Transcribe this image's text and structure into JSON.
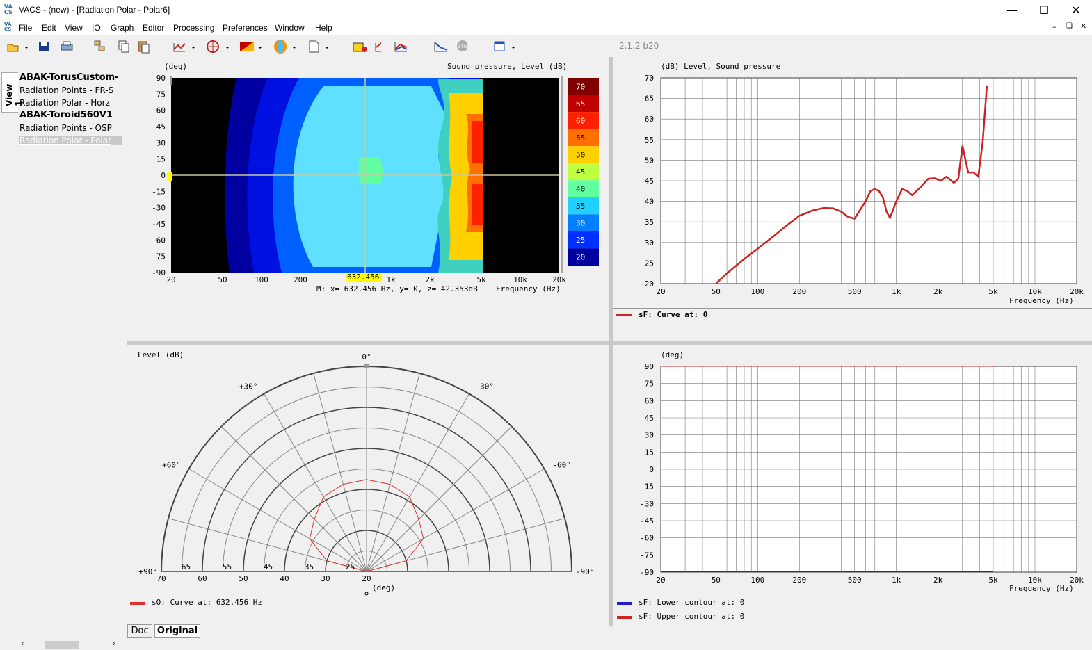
{
  "window": {
    "title": "VACS - (new) - [Radiation Polar - Polar6]",
    "logo": "VA CS",
    "controls": [
      "minimize-icon",
      "maximize-icon",
      "close-icon"
    ]
  },
  "menu": [
    "File",
    "Edit",
    "View",
    "IO",
    "Graph",
    "Editor",
    "Processing",
    "Preferences",
    "Window",
    "Help"
  ],
  "version": "2.1.2 b20",
  "sidebar": {
    "tab": "View 1",
    "items": [
      {
        "label": "ABAK-TorusCustom-",
        "bold": true
      },
      {
        "label": "Radiation Points - FR-S",
        "bold": false
      },
      {
        "label": "Radiation Polar - Horz",
        "bold": false
      },
      {
        "label": "ABAK-Toroid560V1",
        "bold": true
      },
      {
        "label": "Radiation Points - OSP",
        "bold": false
      },
      {
        "label": "Radiation Polar - Polar",
        "bold": false,
        "selected": true
      }
    ]
  },
  "contour": {
    "ylabel": "(deg)",
    "zlabel": "Sound pressure, Level  (dB)",
    "yticks": [
      "90",
      "75",
      "60",
      "45",
      "30",
      "15",
      "0",
      "-15",
      "-30",
      "-45",
      "-60",
      "-75",
      "-90"
    ],
    "xticks": [
      "20",
      "50",
      "100",
      "200",
      "",
      "1k",
      "2k",
      "5k",
      "10k",
      "20k"
    ],
    "cursor_x": "632.456",
    "cursor_y": "0",
    "readout": "M:  x= 632.456 Hz,  y= 0, z= 42.353dB",
    "xlabel": "Frequency  (Hz)",
    "colorbar": [
      "70",
      "65",
      "60",
      "55",
      "50",
      "45",
      "40",
      "35",
      "30",
      "25",
      "20"
    ],
    "colorbar_colors": [
      "#800000",
      "#c00000",
      "#ff2000",
      "#ff7000",
      "#ffd000",
      "#c0ff40",
      "#60ffa0",
      "#20d0ff",
      "#0080ff",
      "#0030ff",
      "#0000a0"
    ]
  },
  "polar": {
    "ylabel": "Level  (dB)",
    "angles": {
      "top": "0°",
      "p30": "+30°",
      "m30": "-30°",
      "p60": "+60°",
      "m60": "-60°",
      "p90": "+90°",
      "m90": "-90°"
    },
    "rlabels": [
      "70",
      "65",
      "60",
      "55",
      "50",
      "45",
      "40",
      "35",
      "30",
      "25",
      "20"
    ],
    "unit": "(deg)",
    "legend": "sO: Curve at: 632.456 Hz",
    "legend_color": "#e03030"
  },
  "freq_plot": {
    "ylabel": "(dB)  Level, Sound pressure",
    "yticks": [
      "70",
      "65",
      "60",
      "55",
      "50",
      "45",
      "40",
      "35",
      "30",
      "25",
      "20"
    ],
    "xticks": [
      "20",
      "50",
      "100",
      "200",
      "500",
      "1k",
      "2k",
      "5k",
      "10k",
      "20k"
    ],
    "xlabel": "Frequency  (Hz)",
    "legend": "sF: Curve at: 0",
    "legend_color": "#d02020"
  },
  "contour_plot": {
    "ylabel": "(deg)",
    "yticks": [
      "90",
      "75",
      "60",
      "45",
      "30",
      "15",
      "0",
      "-15",
      "-30",
      "-45",
      "-60",
      "-75",
      "-90"
    ],
    "xticks": [
      "20",
      "50",
      "100",
      "200",
      "500",
      "1k",
      "2k",
      "5k",
      "10k",
      "20k"
    ],
    "xlabel": "Frequency  (Hz)",
    "legends": [
      {
        "text": "sF: Lower contour at: 0",
        "color": "#2020d0"
      },
      {
        "text": "sF: Upper contour at: 0",
        "color": "#d02020"
      }
    ]
  },
  "bottom_tabs": [
    "Doc",
    "Original"
  ],
  "chart_data": [
    {
      "type": "line",
      "title": "",
      "ylabel": "(dB)  Level, Sound pressure",
      "xlabel": "Frequency  (Hz)",
      "xscale": "log",
      "xlim": [
        20,
        20000
      ],
      "ylim": [
        20,
        70
      ],
      "x": [
        50,
        60,
        80,
        100,
        130,
        160,
        200,
        250,
        300,
        350,
        400,
        450,
        500,
        600,
        650,
        700,
        750,
        800,
        850,
        900,
        1000,
        1100,
        1200,
        1300,
        1500,
        1700,
        1900,
        2100,
        2300,
        2500,
        2600,
        2800,
        3000,
        3300,
        3600,
        3900,
        4200,
        4500
      ],
      "series": [
        {
          "name": "sF: Curve at: 0",
          "values": [
            20,
            22.5,
            26,
            28.5,
            31.5,
            34,
            36.5,
            37.8,
            38.4,
            38.3,
            37.5,
            36.2,
            35.8,
            40,
            42.5,
            43,
            42.5,
            41,
            37.5,
            36,
            40,
            43,
            42.5,
            41.5,
            43.5,
            45.5,
            45.6,
            45,
            46,
            45,
            44.5,
            45.5,
            53.5,
            47,
            47,
            46,
            54.5,
            68
          ]
        }
      ]
    },
    {
      "type": "line",
      "title": "",
      "ylabel": "(deg)",
      "xlabel": "Frequency  (Hz)",
      "xscale": "log",
      "xlim": [
        20,
        20000
      ],
      "ylim": [
        -90,
        90
      ],
      "x": [
        20,
        5000
      ],
      "series": [
        {
          "name": "sF: Lower contour at: 0",
          "values": [
            -90,
            -90
          ]
        },
        {
          "name": "sF: Upper contour at: 0",
          "values": [
            90,
            90
          ]
        }
      ]
    },
    {
      "type": "line",
      "title": "",
      "polar": true,
      "rlim": [
        20,
        70
      ],
      "x": [
        -90,
        -75,
        -60,
        -45,
        -30,
        -15,
        0,
        15,
        30,
        45,
        60,
        75,
        90
      ],
      "series": [
        {
          "name": "sO: Curve at: 632.456 Hz",
          "values": [
            20,
            30,
            36,
            38,
            41,
            42,
            42.4,
            42,
            41,
            38,
            36,
            30,
            20
          ]
        }
      ]
    }
  ]
}
